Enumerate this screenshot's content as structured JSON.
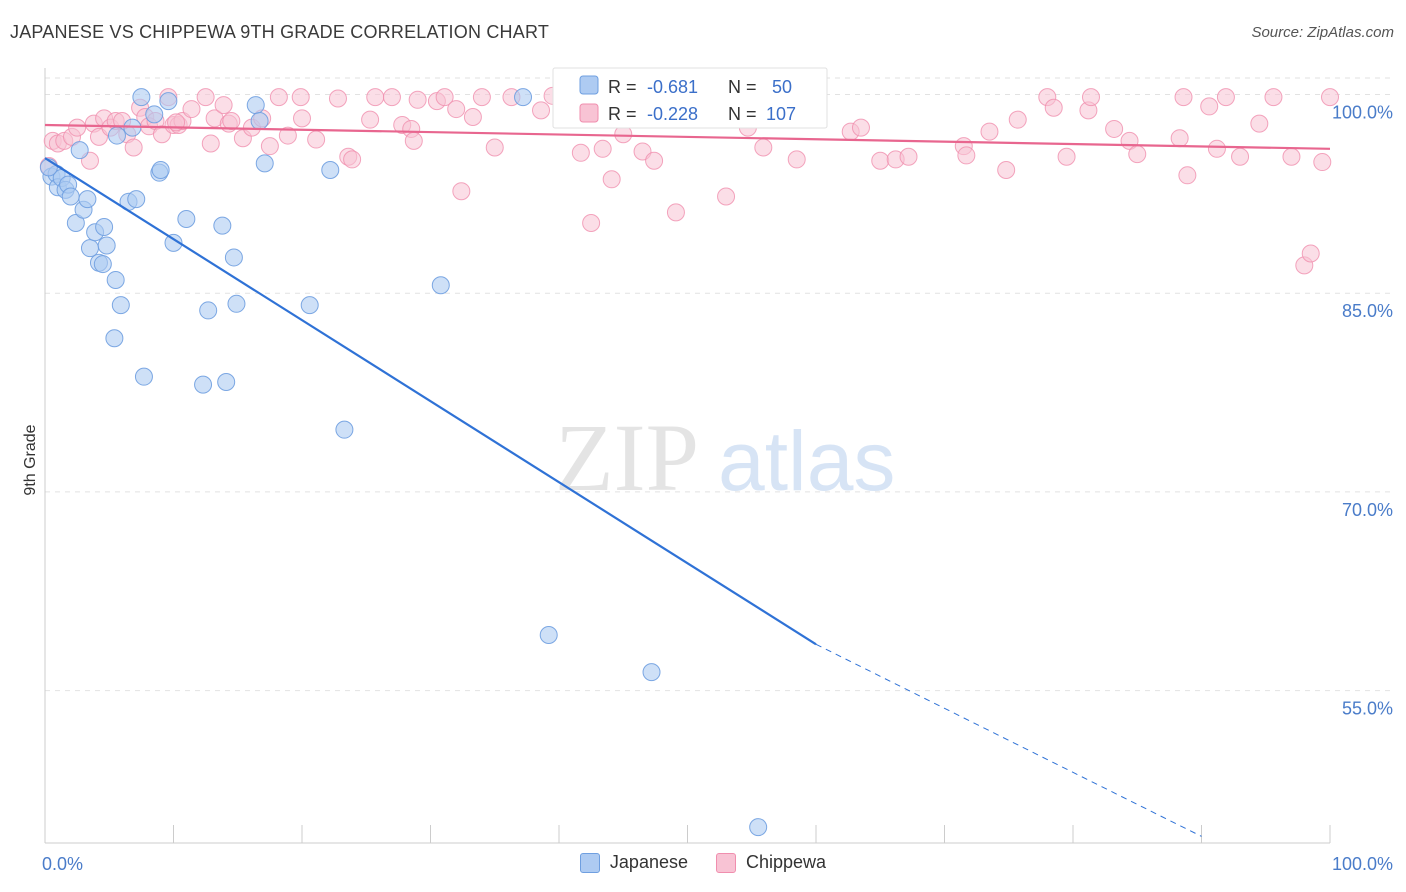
{
  "header": {
    "title": "JAPANESE VS CHIPPEWA 9TH GRADE CORRELATION CHART",
    "source": "Source: ZipAtlas.com"
  },
  "watermark": {
    "zip": "ZIP",
    "atlas": "atlas"
  },
  "colors": {
    "japanese_fill": "#aecbf2",
    "japanese_stroke": "#6f9fe0",
    "japanese_line": "#2f72d6",
    "chippewa_fill": "#f8c3d4",
    "chippewa_stroke": "#f08eae",
    "chippewa_line": "#e8668f",
    "axis_label": "#4a7cc9",
    "grid": "#e2e2e2"
  },
  "stats_legend": {
    "japanese": {
      "r_label": "R =",
      "r_value": "-0.681",
      "n_label": "N =",
      "n_value": "50"
    },
    "chippewa": {
      "r_label": "R =",
      "r_value": "-0.228",
      "n_label": "N =",
      "n_value": "107"
    }
  },
  "chart_data": {
    "type": "scatter",
    "title": "JAPANESE VS CHIPPEWA 9TH GRADE CORRELATION CHART",
    "xlabel": "",
    "ylabel": "9th Grade",
    "xlim": [
      0,
      100
    ],
    "ylim": [
      43.5,
      102
    ],
    "x_tick_labels": [
      "0.0%",
      "100.0%"
    ],
    "y_ticks": [
      55,
      70,
      85,
      100
    ],
    "y_tick_labels": [
      "55.0%",
      "70.0%",
      "85.0%",
      "100.0%"
    ],
    "grid": true,
    "legend_position": "bottom",
    "series": [
      {
        "name": "Japanese",
        "points": [
          [
            0.5,
            93.8
          ],
          [
            0.9,
            94.0
          ],
          [
            1.0,
            93.0
          ],
          [
            1.3,
            93.7
          ],
          [
            1.6,
            92.8
          ],
          [
            1.8,
            93.2
          ],
          [
            2.0,
            92.3
          ],
          [
            2.4,
            90.3
          ],
          [
            2.7,
            95.8
          ],
          [
            3.0,
            91.3
          ],
          [
            3.3,
            92.1
          ],
          [
            3.5,
            88.4
          ],
          [
            3.9,
            89.6
          ],
          [
            4.2,
            87.3
          ],
          [
            4.5,
            87.2
          ],
          [
            4.6,
            90.0
          ],
          [
            4.8,
            88.6
          ],
          [
            5.5,
            86.0
          ],
          [
            5.9,
            84.1
          ],
          [
            5.4,
            81.6
          ],
          [
            5.6,
            96.9
          ],
          [
            6.5,
            91.9
          ],
          [
            6.8,
            97.5
          ],
          [
            7.1,
            92.1
          ],
          [
            7.5,
            99.8
          ],
          [
            7.7,
            78.7
          ],
          [
            8.5,
            98.5
          ],
          [
            8.9,
            94.1
          ],
          [
            9.0,
            94.3
          ],
          [
            9.6,
            99.5
          ],
          [
            10.0,
            88.8
          ],
          [
            11.0,
            90.6
          ],
          [
            12.3,
            78.1
          ],
          [
            12.7,
            83.7
          ],
          [
            13.8,
            90.1
          ],
          [
            14.1,
            78.3
          ],
          [
            14.7,
            87.7
          ],
          [
            14.9,
            84.2
          ],
          [
            16.4,
            99.2
          ],
          [
            16.7,
            98.0
          ],
          [
            17.1,
            94.8
          ],
          [
            20.6,
            84.1
          ],
          [
            22.2,
            94.3
          ],
          [
            23.3,
            74.7
          ],
          [
            30.8,
            85.6
          ],
          [
            37.2,
            99.8
          ],
          [
            39.2,
            59.2
          ],
          [
            47.2,
            56.4
          ],
          [
            55.5,
            44.7
          ],
          [
            0.3,
            94.5
          ]
        ],
        "trend": {
          "x0": 0,
          "y0": 95.2,
          "x1": 60,
          "y1": 58.5,
          "dash_to_x": 90,
          "dash_to_y": 44
        }
      },
      {
        "name": "Chippewa",
        "points": [
          [
            0.3,
            94.6
          ],
          [
            0.6,
            96.5
          ],
          [
            1.0,
            96.3
          ],
          [
            1.5,
            96.5
          ],
          [
            2.1,
            96.8
          ],
          [
            2.5,
            97.5
          ],
          [
            3.5,
            95.0
          ],
          [
            3.8,
            97.8
          ],
          [
            4.2,
            96.8
          ],
          [
            4.6,
            98.2
          ],
          [
            5.1,
            97.5
          ],
          [
            5.5,
            98.0
          ],
          [
            6.4,
            97.0
          ],
          [
            6.9,
            96.0
          ],
          [
            7.4,
            99.0
          ],
          [
            7.8,
            98.3
          ],
          [
            8.1,
            97.6
          ],
          [
            8.6,
            98.0
          ],
          [
            9.1,
            97.0
          ],
          [
            9.6,
            99.8
          ],
          [
            10.0,
            97.7
          ],
          [
            10.4,
            97.7
          ],
          [
            10.7,
            98.0
          ],
          [
            11.4,
            98.9
          ],
          [
            12.5,
            99.8
          ],
          [
            12.9,
            96.3
          ],
          [
            13.2,
            98.2
          ],
          [
            13.9,
            99.2
          ],
          [
            14.3,
            97.8
          ],
          [
            15.4,
            96.7
          ],
          [
            16.1,
            97.5
          ],
          [
            16.9,
            98.2
          ],
          [
            17.5,
            96.1
          ],
          [
            18.2,
            99.8
          ],
          [
            18.9,
            96.9
          ],
          [
            20.0,
            98.2
          ],
          [
            21.1,
            96.6
          ],
          [
            22.8,
            99.7
          ],
          [
            23.6,
            95.3
          ],
          [
            23.9,
            95.1
          ],
          [
            25.3,
            98.1
          ],
          [
            25.7,
            99.8
          ],
          [
            27.0,
            99.8
          ],
          [
            27.8,
            97.7
          ],
          [
            28.5,
            97.4
          ],
          [
            28.7,
            96.5
          ],
          [
            29.0,
            99.6
          ],
          [
            30.5,
            99.5
          ],
          [
            31.1,
            99.8
          ],
          [
            32.0,
            98.9
          ],
          [
            32.4,
            92.7
          ],
          [
            33.3,
            98.3
          ],
          [
            34.0,
            99.8
          ],
          [
            35.0,
            96.0
          ],
          [
            36.3,
            99.8
          ],
          [
            38.6,
            98.8
          ],
          [
            39.5,
            99.9
          ],
          [
            41.7,
            95.6
          ],
          [
            42.5,
            90.3
          ],
          [
            43.4,
            95.9
          ],
          [
            44.1,
            93.6
          ],
          [
            45.0,
            97.0
          ],
          [
            45.5,
            98.8
          ],
          [
            46.5,
            95.7
          ],
          [
            47.4,
            95.0
          ],
          [
            49.1,
            91.1
          ],
          [
            50.2,
            99.6
          ],
          [
            53.0,
            92.3
          ],
          [
            54.7,
            97.5
          ],
          [
            55.9,
            96.0
          ],
          [
            58.5,
            95.1
          ],
          [
            62.7,
            97.2
          ],
          [
            63.5,
            97.5
          ],
          [
            65.0,
            95.0
          ],
          [
            66.2,
            95.1
          ],
          [
            67.2,
            95.3
          ],
          [
            71.5,
            96.1
          ],
          [
            71.7,
            95.4
          ],
          [
            73.5,
            97.2
          ],
          [
            74.8,
            94.3
          ],
          [
            75.7,
            98.1
          ],
          [
            78.0,
            99.8
          ],
          [
            78.5,
            99.0
          ],
          [
            79.5,
            95.3
          ],
          [
            81.2,
            98.8
          ],
          [
            81.4,
            99.8
          ],
          [
            83.2,
            97.4
          ],
          [
            84.4,
            96.5
          ],
          [
            85.0,
            95.5
          ],
          [
            88.3,
            96.7
          ],
          [
            88.6,
            99.8
          ],
          [
            88.9,
            93.9
          ],
          [
            90.6,
            99.1
          ],
          [
            91.2,
            95.9
          ],
          [
            91.9,
            99.8
          ],
          [
            93.0,
            95.3
          ],
          [
            94.5,
            97.8
          ],
          [
            95.6,
            99.8
          ],
          [
            97.0,
            95.3
          ],
          [
            98.0,
            87.1
          ],
          [
            98.5,
            88.0
          ],
          [
            99.4,
            94.9
          ],
          [
            100.0,
            99.8
          ],
          [
            6.0,
            98.0
          ],
          [
            10.2,
            97.9
          ],
          [
            14.5,
            98.0
          ],
          [
            19.9,
            99.8
          ]
        ],
        "trend": {
          "x0": 0,
          "y0": 97.7,
          "x1": 100,
          "y1": 95.9
        }
      }
    ]
  },
  "bottom_legend": {
    "japanese_label": "Japanese",
    "chippewa_label": "Chippewa"
  }
}
